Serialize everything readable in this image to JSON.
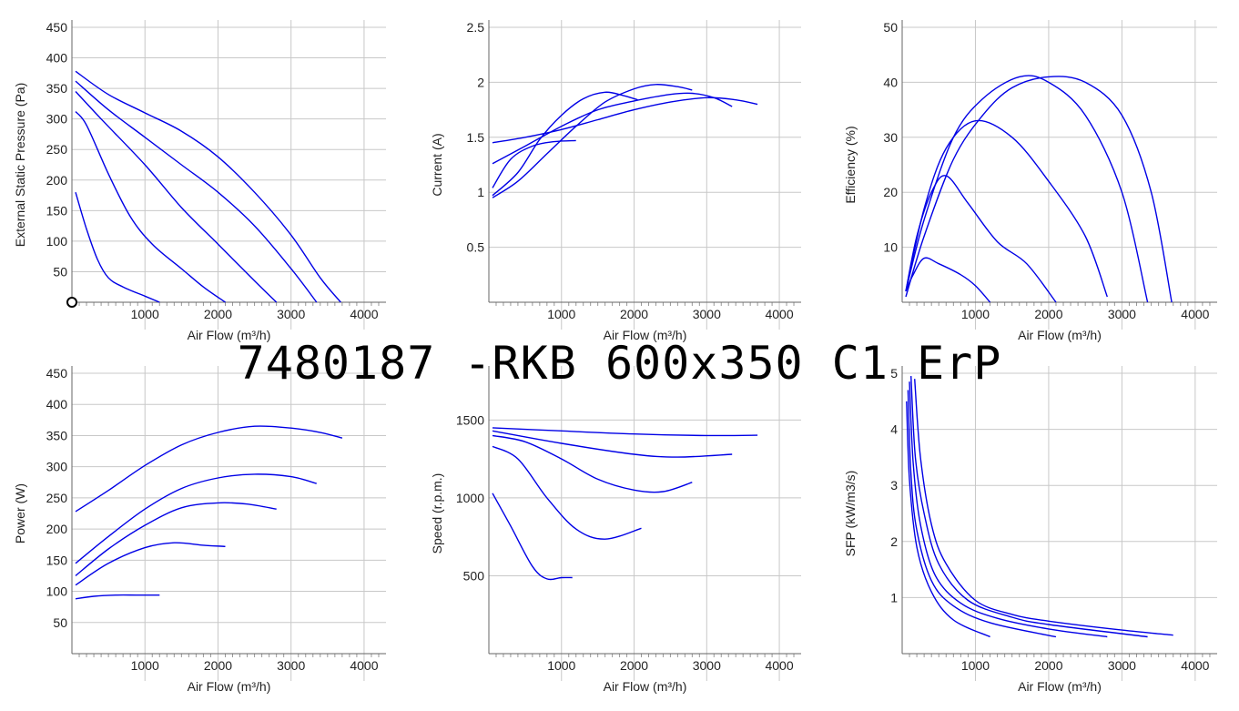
{
  "title": "7480187 -RKB 600x350 C1 ErP",
  "colors": {
    "curve": "#0000e6",
    "grid": "#c8c8c8",
    "axis": "#666666",
    "text": "#222222"
  },
  "chart_data": [
    {
      "id": "pressure",
      "type": "line",
      "xlabel": "Air Flow (m³/h)",
      "ylabel": "External Static Pressure (Pa)",
      "xlim": [
        0,
        4300
      ],
      "ylim": [
        0,
        450
      ],
      "xticks": [
        1000,
        2000,
        3000,
        4000
      ],
      "yticks": [
        50,
        100,
        150,
        200,
        250,
        300,
        350,
        400,
        450
      ],
      "origin_marker": true,
      "series": [
        {
          "points": [
            [
              50,
              378
            ],
            [
              500,
              340
            ],
            [
              1000,
              310
            ],
            [
              1500,
              280
            ],
            [
              2000,
              238
            ],
            [
              2500,
              180
            ],
            [
              3000,
              110
            ],
            [
              3400,
              40
            ],
            [
              3680,
              0
            ]
          ]
        },
        {
          "points": [
            [
              50,
              362
            ],
            [
              500,
              315
            ],
            [
              1000,
              270
            ],
            [
              1500,
              225
            ],
            [
              2000,
              180
            ],
            [
              2500,
              125
            ],
            [
              3000,
              55
            ],
            [
              3350,
              0
            ]
          ]
        },
        {
          "points": [
            [
              50,
              345
            ],
            [
              400,
              300
            ],
            [
              1000,
              225
            ],
            [
              1500,
              155
            ],
            [
              2000,
              95
            ],
            [
              2500,
              35
            ],
            [
              2800,
              0
            ]
          ]
        },
        {
          "points": [
            [
              50,
              312
            ],
            [
              200,
              290
            ],
            [
              500,
              210
            ],
            [
              800,
              140
            ],
            [
              1100,
              95
            ],
            [
              1500,
              55
            ],
            [
              1800,
              25
            ],
            [
              2100,
              0
            ]
          ]
        },
        {
          "points": [
            [
              50,
              180
            ],
            [
              200,
              120
            ],
            [
              350,
              70
            ],
            [
              500,
              40
            ],
            [
              700,
              25
            ],
            [
              1000,
              10
            ],
            [
              1200,
              0
            ]
          ]
        }
      ]
    },
    {
      "id": "current",
      "type": "line",
      "xlabel": "Air Flow (m³/h)",
      "ylabel": "Current (A)",
      "xlim": [
        0,
        4300
      ],
      "ylim": [
        0,
        2.5
      ],
      "xticks": [
        1000,
        2000,
        3000,
        4000
      ],
      "yticks": [
        0.5,
        1,
        1.5,
        2,
        2.5
      ],
      "series": [
        {
          "points": [
            [
              50,
              1.45
            ],
            [
              500,
              1.5
            ],
            [
              1000,
              1.57
            ],
            [
              1500,
              1.66
            ],
            [
              2000,
              1.75
            ],
            [
              2500,
              1.82
            ],
            [
              3000,
              1.86
            ],
            [
              3400,
              1.84
            ],
            [
              3700,
              1.8
            ]
          ]
        },
        {
          "points": [
            [
              50,
              1.26
            ],
            [
              500,
              1.42
            ],
            [
              1000,
              1.6
            ],
            [
              1500,
              1.75
            ],
            [
              2000,
              1.83
            ],
            [
              2500,
              1.89
            ],
            [
              2800,
              1.9
            ],
            [
              3100,
              1.86
            ],
            [
              3350,
              1.78
            ]
          ]
        },
        {
          "points": [
            [
              50,
              0.95
            ],
            [
              400,
              1.1
            ],
            [
              800,
              1.35
            ],
            [
              1200,
              1.6
            ],
            [
              1600,
              1.82
            ],
            [
              2000,
              1.94
            ],
            [
              2300,
              1.98
            ],
            [
              2600,
              1.96
            ],
            [
              2800,
              1.93
            ]
          ]
        },
        {
          "points": [
            [
              50,
              0.97
            ],
            [
              400,
              1.18
            ],
            [
              700,
              1.48
            ],
            [
              1000,
              1.7
            ],
            [
              1300,
              1.85
            ],
            [
              1600,
              1.91
            ],
            [
              1850,
              1.88
            ],
            [
              2050,
              1.84
            ]
          ]
        },
        {
          "points": [
            [
              50,
              1.04
            ],
            [
              300,
              1.3
            ],
            [
              600,
              1.42
            ],
            [
              900,
              1.46
            ],
            [
              1200,
              1.47
            ]
          ]
        }
      ]
    },
    {
      "id": "efficiency",
      "type": "line",
      "xlabel": "Air Flow (m³/h)",
      "ylabel": "Efficiency (%)",
      "xlim": [
        0,
        4300
      ],
      "ylim": [
        0,
        50
      ],
      "xticks": [
        1000,
        2000,
        3000,
        4000
      ],
      "yticks": [
        10,
        20,
        30,
        40,
        50
      ],
      "series": [
        {
          "points": [
            [
              50,
              1
            ],
            [
              300,
              12
            ],
            [
              700,
              26
            ],
            [
              1100,
              34
            ],
            [
              1500,
              39
            ],
            [
              2000,
              41
            ],
            [
              2500,
              40
            ],
            [
              3000,
              34
            ],
            [
              3400,
              20
            ],
            [
              3680,
              0
            ]
          ]
        },
        {
          "points": [
            [
              50,
              2
            ],
            [
              300,
              15
            ],
            [
              700,
              30
            ],
            [
              1100,
              37
            ],
            [
              1600,
              41
            ],
            [
              2000,
              40
            ],
            [
              2500,
              34
            ],
            [
              3000,
              20
            ],
            [
              3350,
              0
            ]
          ]
        },
        {
          "points": [
            [
              50,
              2
            ],
            [
              300,
              17
            ],
            [
              600,
              28
            ],
            [
              1000,
              33
            ],
            [
              1500,
              30
            ],
            [
              2000,
              22
            ],
            [
              2500,
              12
            ],
            [
              2800,
              1
            ]
          ]
        },
        {
          "points": [
            [
              50,
              2
            ],
            [
              200,
              12
            ],
            [
              400,
              20
            ],
            [
              600,
              23
            ],
            [
              900,
              18
            ],
            [
              1300,
              11
            ],
            [
              1700,
              7
            ],
            [
              2100,
              0
            ]
          ]
        },
        {
          "points": [
            [
              50,
              2
            ],
            [
              150,
              5
            ],
            [
              300,
              8
            ],
            [
              500,
              7
            ],
            [
              800,
              5
            ],
            [
              1000,
              3
            ],
            [
              1200,
              0
            ]
          ]
        }
      ]
    },
    {
      "id": "power",
      "type": "line",
      "xlabel": "Air Flow (m³/h)",
      "ylabel": "Power (W)",
      "xlim": [
        0,
        4300
      ],
      "ylim": [
        0,
        450
      ],
      "xticks": [
        1000,
        2000,
        3000,
        4000
      ],
      "yticks": [
        50,
        100,
        150,
        200,
        250,
        300,
        350,
        400,
        450
      ],
      "series": [
        {
          "points": [
            [
              50,
              228
            ],
            [
              500,
              262
            ],
            [
              1000,
              302
            ],
            [
              1500,
              335
            ],
            [
              2000,
              355
            ],
            [
              2500,
              365
            ],
            [
              3000,
              362
            ],
            [
              3400,
              355
            ],
            [
              3700,
              346
            ]
          ]
        },
        {
          "points": [
            [
              50,
              145
            ],
            [
              500,
              188
            ],
            [
              1000,
              232
            ],
            [
              1500,
              265
            ],
            [
              2000,
              282
            ],
            [
              2500,
              288
            ],
            [
              3000,
              284
            ],
            [
              3350,
              273
            ]
          ]
        },
        {
          "points": [
            [
              50,
              125
            ],
            [
              500,
              168
            ],
            [
              1000,
              206
            ],
            [
              1500,
              234
            ],
            [
              2000,
              242
            ],
            [
              2400,
              240
            ],
            [
              2800,
              232
            ]
          ]
        },
        {
          "points": [
            [
              50,
              110
            ],
            [
              500,
              145
            ],
            [
              1000,
              170
            ],
            [
              1400,
              178
            ],
            [
              1800,
              174
            ],
            [
              2100,
              172
            ]
          ]
        },
        {
          "points": [
            [
              50,
              88
            ],
            [
              300,
              92
            ],
            [
              600,
              94
            ],
            [
              900,
              94
            ],
            [
              1200,
              94
            ]
          ]
        }
      ]
    },
    {
      "id": "speed",
      "type": "line",
      "xlabel": "Air Flow (m³/h)",
      "ylabel": "Speed (r.p.m.)",
      "xlim": [
        0,
        4300
      ],
      "ylim": [
        0,
        1800
      ],
      "xticks": [
        1000,
        2000,
        3000,
        4000
      ],
      "yticks": [
        500,
        1000,
        1500
      ],
      "series": [
        {
          "points": [
            [
              50,
              1450
            ],
            [
              1000,
              1430
            ],
            [
              2000,
              1410
            ],
            [
              3000,
              1400
            ],
            [
              3700,
              1402
            ]
          ]
        },
        {
          "points": [
            [
              50,
              1430
            ],
            [
              1000,
              1350
            ],
            [
              2000,
              1280
            ],
            [
              2600,
              1262
            ],
            [
              3350,
              1280
            ]
          ]
        },
        {
          "points": [
            [
              50,
              1400
            ],
            [
              500,
              1360
            ],
            [
              1000,
              1250
            ],
            [
              1500,
              1120
            ],
            [
              2000,
              1050
            ],
            [
              2400,
              1040
            ],
            [
              2800,
              1100
            ]
          ]
        },
        {
          "points": [
            [
              50,
              1330
            ],
            [
              400,
              1250
            ],
            [
              800,
              1000
            ],
            [
              1200,
              800
            ],
            [
              1600,
              735
            ],
            [
              2100,
              805
            ]
          ]
        },
        {
          "points": [
            [
              50,
              1030
            ],
            [
              300,
              820
            ],
            [
              600,
              560
            ],
            [
              800,
              480
            ],
            [
              1000,
              488
            ],
            [
              1150,
              488
            ]
          ]
        }
      ]
    },
    {
      "id": "sfp",
      "type": "line",
      "xlabel": "Air Flow (m³/h)",
      "ylabel": "SFP (kW/m3/s)",
      "xlim": [
        0,
        4300
      ],
      "ylim": [
        0,
        5
      ],
      "xticks": [
        1000,
        2000,
        3000,
        4000
      ],
      "yticks": [
        1,
        2,
        3,
        4,
        5
      ],
      "series": [
        {
          "points": [
            [
              170,
              4.9
            ],
            [
              250,
              3.5
            ],
            [
              400,
              2.3
            ],
            [
              600,
              1.6
            ],
            [
              1000,
              0.95
            ],
            [
              1500,
              0.7
            ],
            [
              2000,
              0.58
            ],
            [
              3000,
              0.42
            ],
            [
              3700,
              0.33
            ]
          ]
        },
        {
          "points": [
            [
              120,
              4.95
            ],
            [
              180,
              3.5
            ],
            [
              300,
              2.5
            ],
            [
              500,
              1.6
            ],
            [
              900,
              0.95
            ],
            [
              1500,
              0.65
            ],
            [
              2000,
              0.52
            ],
            [
              3350,
              0.3
            ]
          ]
        },
        {
          "points": [
            [
              100,
              4.85
            ],
            [
              150,
              3.4
            ],
            [
              250,
              2.3
            ],
            [
              450,
              1.4
            ],
            [
              800,
              0.9
            ],
            [
              1300,
              0.63
            ],
            [
              2000,
              0.44
            ],
            [
              2800,
              0.3
            ]
          ]
        },
        {
          "points": [
            [
              80,
              4.7
            ],
            [
              120,
              3.2
            ],
            [
              200,
              2.2
            ],
            [
              400,
              1.3
            ],
            [
              700,
              0.85
            ],
            [
              1200,
              0.55
            ],
            [
              2100,
              0.3
            ]
          ]
        },
        {
          "points": [
            [
              60,
              4.5
            ],
            [
              100,
              3.1
            ],
            [
              200,
              1.9
            ],
            [
              400,
              1.1
            ],
            [
              700,
              0.6
            ],
            [
              1200,
              0.3
            ]
          ]
        }
      ]
    }
  ]
}
